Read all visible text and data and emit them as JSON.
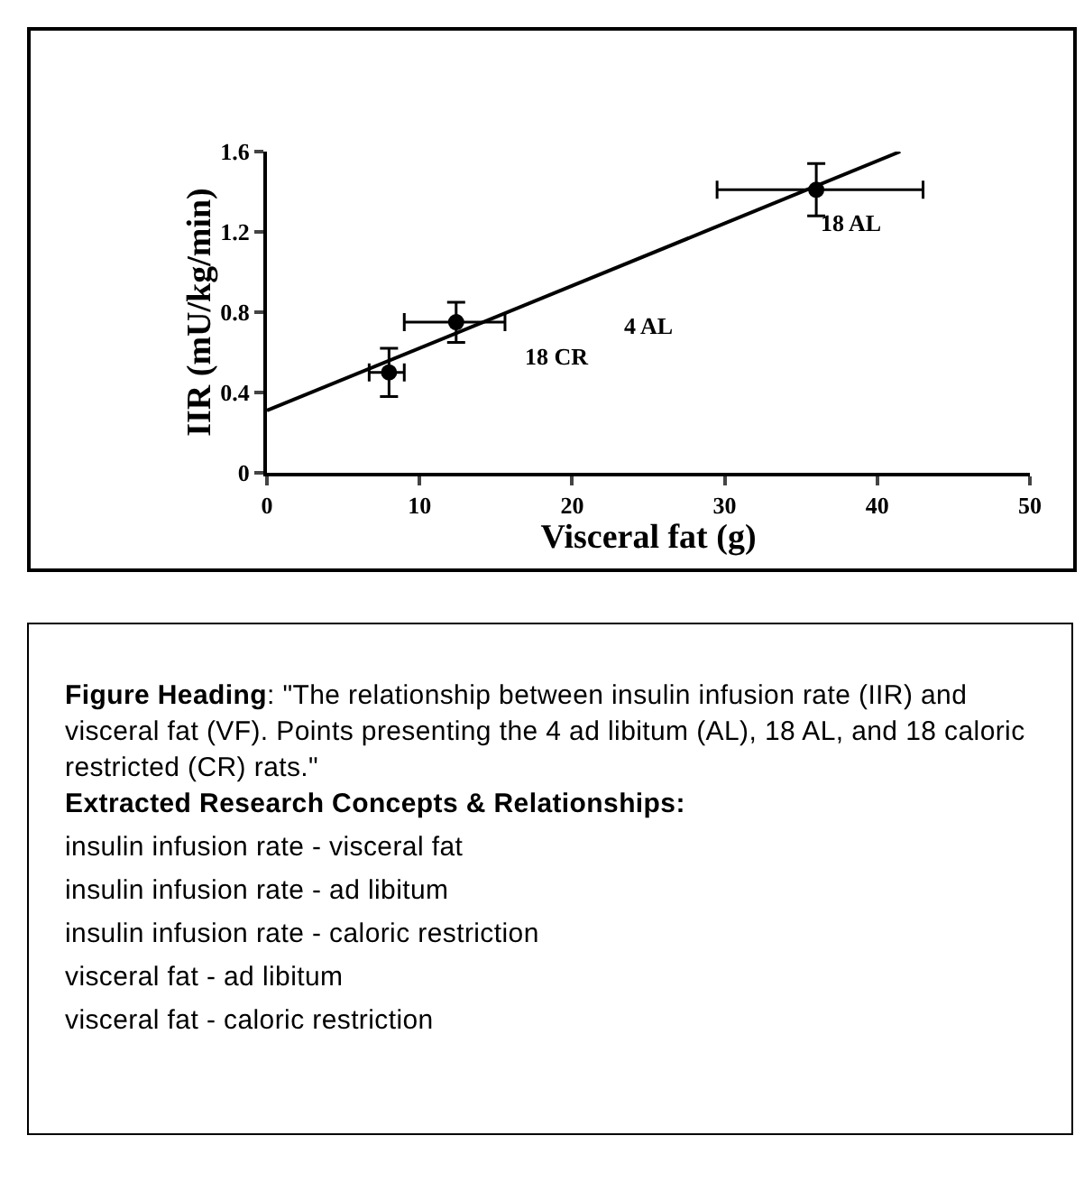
{
  "chart_data": [
    {
      "type": "scatter",
      "xlabel": "Visceral fat (g)",
      "ylabel": "IIR (mU/kg/min)",
      "xlim": [
        0,
        50
      ],
      "xticks": [
        0,
        10,
        20,
        30,
        40,
        50
      ],
      "ylim": [
        0,
        1.6
      ],
      "yticks": [
        0,
        0.4,
        0.8,
        1.2,
        1.6
      ],
      "series": [
        {
          "type": "scatter",
          "marker": "circle",
          "color": "#000000",
          "x": [
            8,
            12.4,
            36
          ],
          "values": [
            0.5,
            0.75,
            1.41
          ],
          "errors": [
            [
              0.38,
              0.62
            ],
            [
              0.65,
              0.85
            ],
            [
              1.28,
              1.54
            ]
          ],
          "xerrors": [
            [
              6.7,
              9
            ],
            [
              9,
              15.6
            ],
            [
              29.5,
              43
            ]
          ]
        },
        {
          "type": "line",
          "color": "#000000",
          "line_style": "solid",
          "x": [
            0,
            41.5
          ],
          "values": [
            0.31,
            1.6
          ]
        }
      ],
      "annotations": [
        "18 AL",
        "4 AL",
        "18 CR"
      ]
    },
    {
      "type": "other",
      "annotations": [
        "Figure Heading: \"The relationship between insulin infusion rate (IIR) and visceral fat (VF). Points presenting the 4 ad libitum (AL), 18 AL, and 18 caloric restricted (CR) rats.\"",
        "Extracted Research Concepts & Relationships:",
        "insulin infusion rate - visceral fat",
        "insulin infusion rate - ad libitum",
        "insulin infusion rate - caloric restriction",
        "visceral fat - ad libitum",
        "visceral fat - caloric restriction"
      ]
    }
  ]
}
